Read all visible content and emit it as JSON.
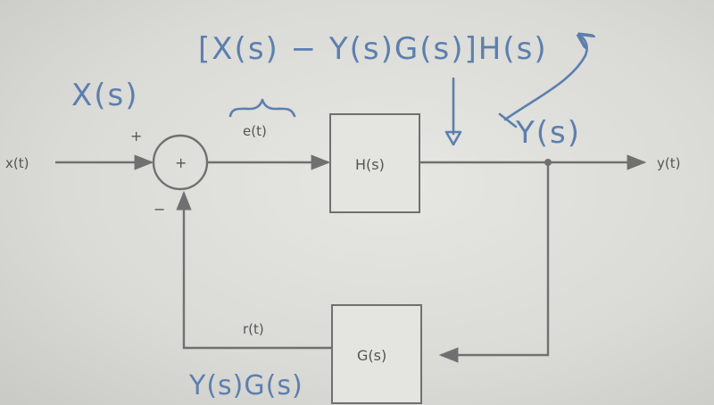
{
  "printed_labels": {
    "input_signal": "x(t)",
    "output_signal": "y(t)",
    "error_signal": "e(t)",
    "feedback_signal": "r(t)",
    "plus_sign": "+",
    "minus_sign": "−",
    "summing_plus": "+",
    "forward_block": "H(s)",
    "feedback_block": "G(s)"
  },
  "handwritten": {
    "input_transform": "X(s)",
    "forward_expression": "[X(s) − Y(s)G(s)]H(s)",
    "output_transform": "Y(s)",
    "feedback_expression": "Y(s)G(s)"
  },
  "colors": {
    "printed_ink": "#707070",
    "marker_ink": "#5c7fae",
    "board": "#dcdcd8"
  }
}
